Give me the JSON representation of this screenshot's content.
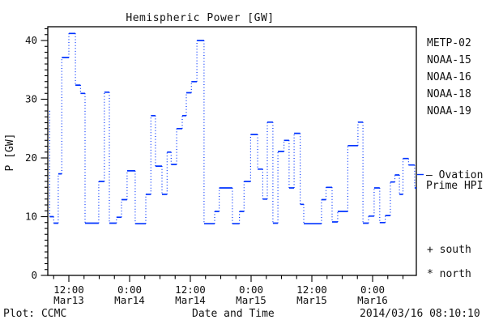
{
  "chart_data": {
    "type": "line",
    "step_style": "post",
    "title": "Hemispheric Power [GW]",
    "xlabel": "Date and Time",
    "ylabel": "P [GW]",
    "ylim": [
      0,
      42.3
    ],
    "x_hours_lim": [
      7.84,
      80.64
    ],
    "x_axis_note": "hours from 2014 Mar13 00:00 UT",
    "grid": false,
    "x_ticks": [
      {
        "t": 12,
        "time": "12:00",
        "date": "Mar13"
      },
      {
        "t": 24,
        "time": "0:00",
        "date": "Mar14"
      },
      {
        "t": 36,
        "time": "12:00",
        "date": "Mar14"
      },
      {
        "t": 48,
        "time": "0:00",
        "date": "Mar15"
      },
      {
        "t": 60,
        "time": "12:00",
        "date": "Mar15"
      },
      {
        "t": 72,
        "time": "0:00",
        "date": "Mar16"
      }
    ],
    "x_minor_hours": 3,
    "y_ticks": [
      {
        "value": 0,
        "label": "0"
      },
      {
        "value": 10,
        "label": "10"
      },
      {
        "value": 20,
        "label": "20"
      },
      {
        "value": 30,
        "label": "30"
      },
      {
        "value": 40,
        "label": "40"
      }
    ],
    "y_minor": 1,
    "legend": [
      {
        "label": "METP-02",
        "color": "#000000"
      },
      {
        "label": "NOAA-15",
        "color": "#0033ff"
      },
      {
        "label": "NOAA-16",
        "color": "#33ccff"
      },
      {
        "label": "NOAA-18",
        "color": "#66ff99"
      },
      {
        "label": "NOAA-19",
        "color": "#ffa033"
      }
    ],
    "series": [
      {
        "name": "Ovation Prime HPI",
        "color": "#0033ff",
        "points": [
          [
            8.17,
            28.0
          ],
          [
            8.22,
            10.0
          ],
          [
            9.0,
            8.9
          ],
          [
            9.9,
            17.3
          ],
          [
            10.6,
            37.1
          ],
          [
            12.0,
            41.2
          ],
          [
            13.3,
            32.4
          ],
          [
            14.3,
            31.0
          ],
          [
            15.2,
            8.9
          ],
          [
            17.9,
            16.0
          ],
          [
            19.0,
            31.2
          ],
          [
            20.0,
            8.9
          ],
          [
            21.4,
            9.9
          ],
          [
            22.4,
            12.9
          ],
          [
            23.5,
            17.8
          ],
          [
            25.1,
            8.8
          ],
          [
            27.2,
            13.8
          ],
          [
            28.2,
            27.2
          ],
          [
            29.1,
            18.6
          ],
          [
            30.4,
            13.8
          ],
          [
            31.4,
            21.0
          ],
          [
            32.2,
            18.9
          ],
          [
            33.3,
            25.0
          ],
          [
            34.4,
            27.2
          ],
          [
            35.2,
            31.1
          ],
          [
            36.2,
            33.0
          ],
          [
            37.3,
            40.0
          ],
          [
            38.7,
            8.8
          ],
          [
            40.8,
            10.9
          ],
          [
            41.7,
            14.9
          ],
          [
            44.3,
            8.8
          ],
          [
            45.7,
            10.9
          ],
          [
            46.6,
            16.0
          ],
          [
            47.9,
            24.0
          ],
          [
            49.3,
            18.1
          ],
          [
            50.3,
            13.0
          ],
          [
            51.2,
            26.1
          ],
          [
            52.3,
            8.9
          ],
          [
            53.3,
            21.1
          ],
          [
            54.5,
            23.0
          ],
          [
            55.5,
            14.9
          ],
          [
            56.5,
            24.2
          ],
          [
            57.7,
            12.1
          ],
          [
            58.4,
            8.8
          ],
          [
            61.9,
            12.9
          ],
          [
            62.8,
            15.0
          ],
          [
            64.0,
            9.1
          ],
          [
            65.1,
            10.9
          ],
          [
            67.1,
            22.1
          ],
          [
            69.1,
            26.1
          ],
          [
            70.1,
            8.9
          ],
          [
            71.2,
            10.1
          ],
          [
            72.3,
            14.9
          ],
          [
            73.4,
            9.0
          ],
          [
            74.5,
            10.2
          ],
          [
            75.5,
            15.9
          ],
          [
            76.4,
            17.1
          ],
          [
            77.3,
            13.8
          ],
          [
            78.0,
            19.9
          ],
          [
            79.1,
            18.8
          ],
          [
            80.3,
            14.9
          ]
        ]
      }
    ]
  },
  "annotations": {
    "ovation_line1": "– Ovation",
    "ovation_line2": "Prime HPI",
    "south_marker": "+ south",
    "north_marker": "* north"
  },
  "footer": {
    "plot_credit": "Plot: CCMC",
    "xlabel": "Date and Time",
    "timestamp": "2014/03/16 08:10:10"
  }
}
